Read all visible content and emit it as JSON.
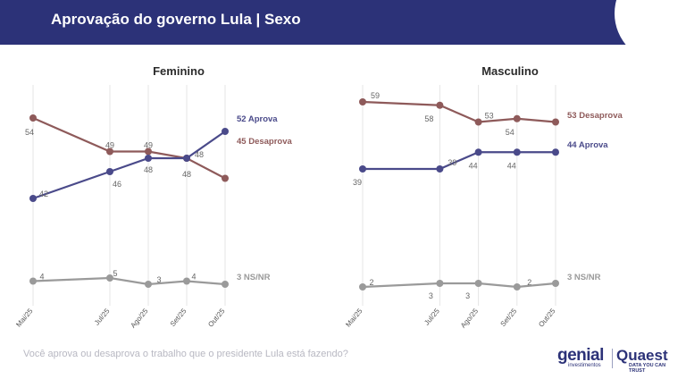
{
  "header": {
    "title": "Aprovação do governo Lula | Sexo",
    "background": "#2c3278"
  },
  "question": "Você aprova ou desaprova o trabalho que o presidente Lula está fazendo?",
  "logos": {
    "genial_main": "genial",
    "genial_sub": "investimentos",
    "quaest_main": "Quaest",
    "quaest_sub": "DATA YOU CAN TRUST"
  },
  "colors": {
    "aprova": "#4a4a8a",
    "desaprova": "#8e5a5a",
    "nsnr": "#9a9a9a"
  },
  "chart_data": [
    {
      "type": "line",
      "title": "Feminino",
      "categories": [
        "Mai/25",
        "Jul/25",
        "Ago/25",
        "Set/25",
        "Out/25"
      ],
      "series": [
        {
          "name": "Desaprova",
          "values": [
            54,
            49,
            49,
            48,
            45
          ],
          "end_label": "45 Desaprova",
          "color": "#8e5a5a"
        },
        {
          "name": "Aprova",
          "values": [
            42,
            46,
            48,
            48,
            52
          ],
          "end_label": "52 Aprova",
          "color": "#4a4a8a"
        },
        {
          "name": "NS/NR",
          "values": [
            4,
            5,
            3,
            4,
            3
          ],
          "end_label": "3 NS/NR",
          "color": "#9a9a9a"
        }
      ],
      "grid": "vertical"
    },
    {
      "type": "line",
      "title": "Masculino",
      "categories": [
        "Mai/25",
        "Jul/25",
        "Ago/25",
        "Set/25",
        "Out/25"
      ],
      "series": [
        {
          "name": "Desaprova",
          "values": [
            59,
            58,
            53,
            54,
            53
          ],
          "end_label": "53 Desaprova",
          "color": "#8e5a5a"
        },
        {
          "name": "Aprova",
          "values": [
            39,
            39,
            44,
            44,
            44
          ],
          "end_label": "44 Aprova",
          "color": "#4a4a8a"
        },
        {
          "name": "NS/NR",
          "values": [
            2,
            3,
            3,
            2,
            3
          ],
          "end_label": "3 NS/NR",
          "color": "#9a9a9a"
        }
      ],
      "grid": "vertical"
    }
  ]
}
